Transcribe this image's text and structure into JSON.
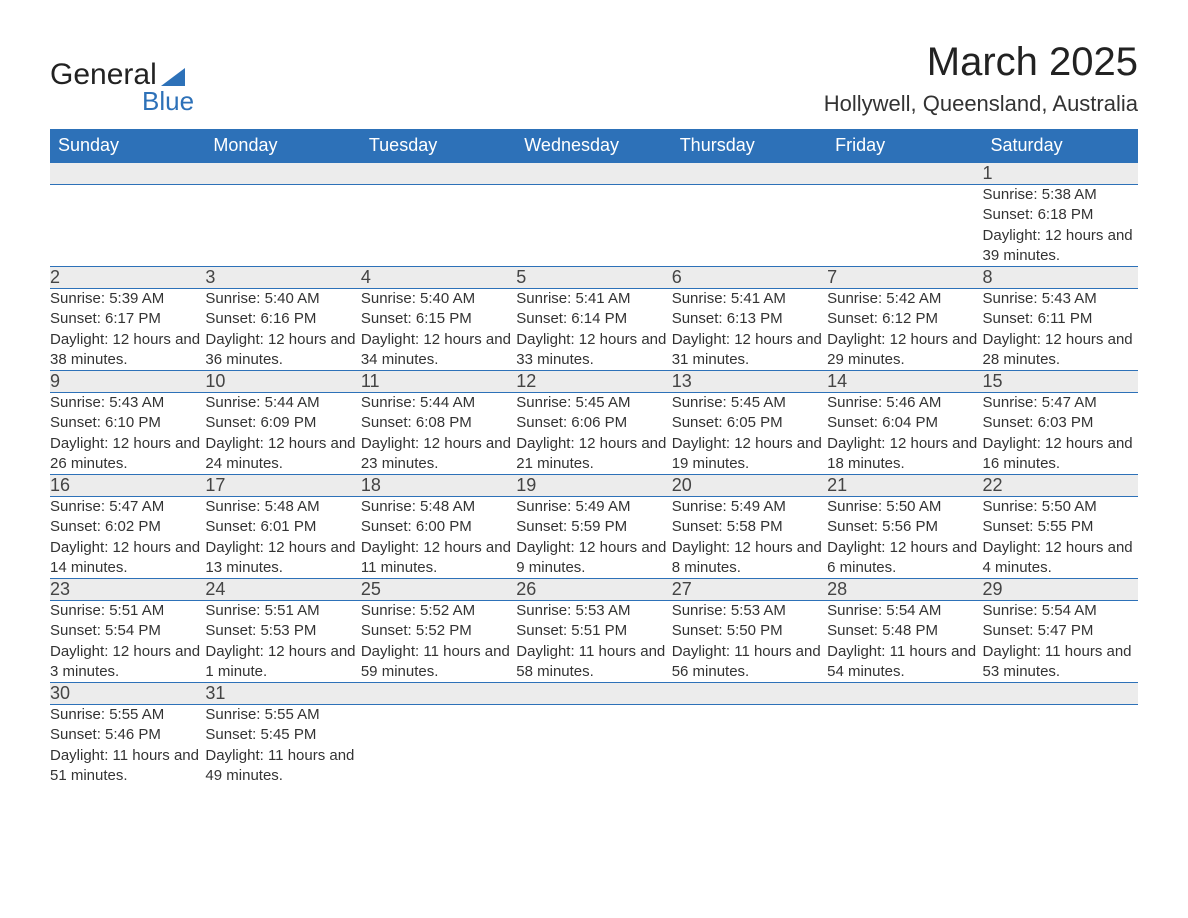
{
  "logo": {
    "word1": "General",
    "word2": "Blue"
  },
  "title": "March 2025",
  "location": "Hollywell, Queensland, Australia",
  "colors": {
    "header_bg": "#2d71b8",
    "header_text": "#ffffff",
    "daynum_bg": "#ececec",
    "row_border": "#2d71b8",
    "text": "#333333",
    "page_bg": "#ffffff"
  },
  "fonts": {
    "title_size": 40,
    "location_size": 22,
    "weekday_size": 18,
    "daynum_size": 18,
    "body_size": 15
  },
  "weekdays": [
    "Sunday",
    "Monday",
    "Tuesday",
    "Wednesday",
    "Thursday",
    "Friday",
    "Saturday"
  ],
  "labels": {
    "sunrise": "Sunrise:",
    "sunset": "Sunset:",
    "daylight": "Daylight:"
  },
  "weeks": [
    [
      null,
      null,
      null,
      null,
      null,
      null,
      {
        "d": "1",
        "sr": "5:38 AM",
        "ss": "6:18 PM",
        "dl": "12 hours and 39 minutes."
      }
    ],
    [
      {
        "d": "2",
        "sr": "5:39 AM",
        "ss": "6:17 PM",
        "dl": "12 hours and 38 minutes."
      },
      {
        "d": "3",
        "sr": "5:40 AM",
        "ss": "6:16 PM",
        "dl": "12 hours and 36 minutes."
      },
      {
        "d": "4",
        "sr": "5:40 AM",
        "ss": "6:15 PM",
        "dl": "12 hours and 34 minutes."
      },
      {
        "d": "5",
        "sr": "5:41 AM",
        "ss": "6:14 PM",
        "dl": "12 hours and 33 minutes."
      },
      {
        "d": "6",
        "sr": "5:41 AM",
        "ss": "6:13 PM",
        "dl": "12 hours and 31 minutes."
      },
      {
        "d": "7",
        "sr": "5:42 AM",
        "ss": "6:12 PM",
        "dl": "12 hours and 29 minutes."
      },
      {
        "d": "8",
        "sr": "5:43 AM",
        "ss": "6:11 PM",
        "dl": "12 hours and 28 minutes."
      }
    ],
    [
      {
        "d": "9",
        "sr": "5:43 AM",
        "ss": "6:10 PM",
        "dl": "12 hours and 26 minutes."
      },
      {
        "d": "10",
        "sr": "5:44 AM",
        "ss": "6:09 PM",
        "dl": "12 hours and 24 minutes."
      },
      {
        "d": "11",
        "sr": "5:44 AM",
        "ss": "6:08 PM",
        "dl": "12 hours and 23 minutes."
      },
      {
        "d": "12",
        "sr": "5:45 AM",
        "ss": "6:06 PM",
        "dl": "12 hours and 21 minutes."
      },
      {
        "d": "13",
        "sr": "5:45 AM",
        "ss": "6:05 PM",
        "dl": "12 hours and 19 minutes."
      },
      {
        "d": "14",
        "sr": "5:46 AM",
        "ss": "6:04 PM",
        "dl": "12 hours and 18 minutes."
      },
      {
        "d": "15",
        "sr": "5:47 AM",
        "ss": "6:03 PM",
        "dl": "12 hours and 16 minutes."
      }
    ],
    [
      {
        "d": "16",
        "sr": "5:47 AM",
        "ss": "6:02 PM",
        "dl": "12 hours and 14 minutes."
      },
      {
        "d": "17",
        "sr": "5:48 AM",
        "ss": "6:01 PM",
        "dl": "12 hours and 13 minutes."
      },
      {
        "d": "18",
        "sr": "5:48 AM",
        "ss": "6:00 PM",
        "dl": "12 hours and 11 minutes."
      },
      {
        "d": "19",
        "sr": "5:49 AM",
        "ss": "5:59 PM",
        "dl": "12 hours and 9 minutes."
      },
      {
        "d": "20",
        "sr": "5:49 AM",
        "ss": "5:58 PM",
        "dl": "12 hours and 8 minutes."
      },
      {
        "d": "21",
        "sr": "5:50 AM",
        "ss": "5:56 PM",
        "dl": "12 hours and 6 minutes."
      },
      {
        "d": "22",
        "sr": "5:50 AM",
        "ss": "5:55 PM",
        "dl": "12 hours and 4 minutes."
      }
    ],
    [
      {
        "d": "23",
        "sr": "5:51 AM",
        "ss": "5:54 PM",
        "dl": "12 hours and 3 minutes."
      },
      {
        "d": "24",
        "sr": "5:51 AM",
        "ss": "5:53 PM",
        "dl": "12 hours and 1 minute."
      },
      {
        "d": "25",
        "sr": "5:52 AM",
        "ss": "5:52 PM",
        "dl": "11 hours and 59 minutes."
      },
      {
        "d": "26",
        "sr": "5:53 AM",
        "ss": "5:51 PM",
        "dl": "11 hours and 58 minutes."
      },
      {
        "d": "27",
        "sr": "5:53 AM",
        "ss": "5:50 PM",
        "dl": "11 hours and 56 minutes."
      },
      {
        "d": "28",
        "sr": "5:54 AM",
        "ss": "5:48 PM",
        "dl": "11 hours and 54 minutes."
      },
      {
        "d": "29",
        "sr": "5:54 AM",
        "ss": "5:47 PM",
        "dl": "11 hours and 53 minutes."
      }
    ],
    [
      {
        "d": "30",
        "sr": "5:55 AM",
        "ss": "5:46 PM",
        "dl": "11 hours and 51 minutes."
      },
      {
        "d": "31",
        "sr": "5:55 AM",
        "ss": "5:45 PM",
        "dl": "11 hours and 49 minutes."
      },
      null,
      null,
      null,
      null,
      null
    ]
  ]
}
